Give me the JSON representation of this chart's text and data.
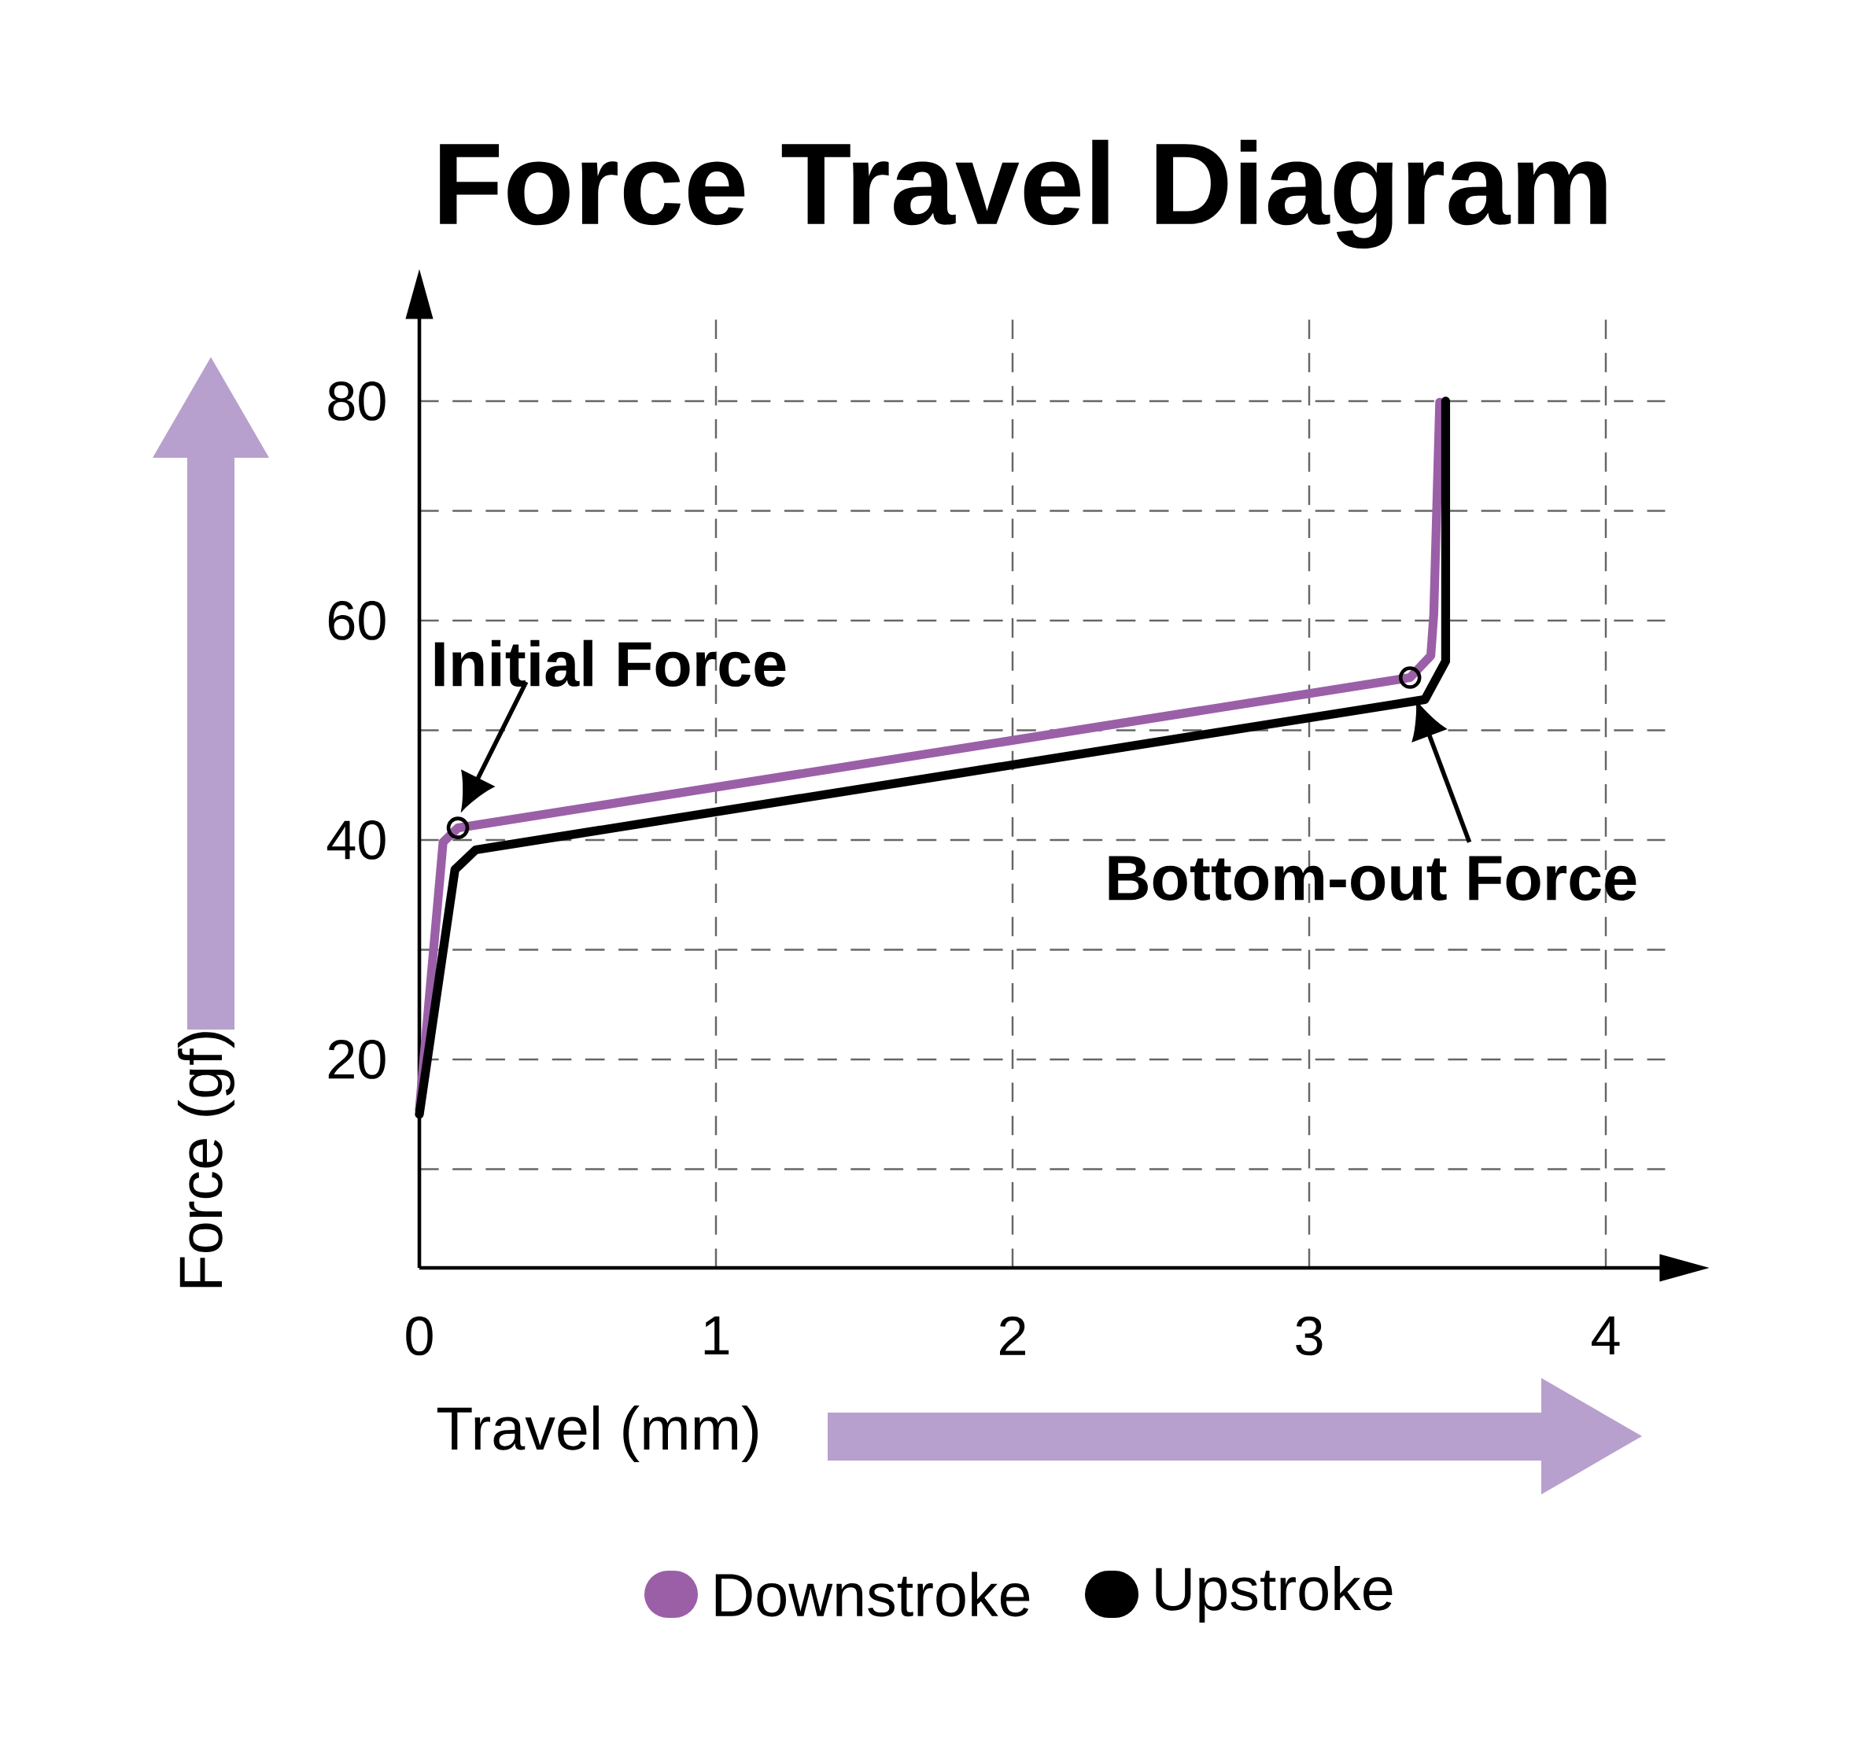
{
  "chart_data": {
    "type": "line",
    "title": "Force Travel Diagram",
    "xlabel": "Travel (mm)",
    "ylabel": "Force (gf)",
    "xlim": [
      0,
      4.2
    ],
    "ylim": [
      1,
      88
    ],
    "xticks": [
      0,
      1,
      2,
      3,
      4
    ],
    "yticks": [
      {
        "value": 10,
        "label": null
      },
      20,
      {
        "value": 30,
        "label": null
      },
      40,
      {
        "value": 50,
        "label": null
      },
      60,
      {
        "value": 70,
        "label": null
      },
      80
    ],
    "grid": true,
    "legend": "bottom",
    "series": [
      {
        "name": "Downstroke",
        "color": "#9b5fa8",
        "x": [
          0,
          0.08,
          0.13,
          3.34,
          3.41,
          3.42,
          3.44
        ],
        "values": [
          15.4,
          39.8,
          41.1,
          54.8,
          56.8,
          60.6,
          79.9
        ]
      },
      {
        "name": "Upstroke",
        "color": "#000000",
        "x": [
          0,
          0.12,
          0.19,
          3.39,
          3.46,
          3.46
        ],
        "values": [
          15,
          37.3,
          39.1,
          52.8,
          56.3,
          80
        ]
      }
    ],
    "annotations": [
      {
        "text": "Initial Force",
        "x": 0.13,
        "y": 41.1
      },
      {
        "text": "Bottom-out Force",
        "x": 3.34,
        "y": 54.8
      }
    ]
  }
}
